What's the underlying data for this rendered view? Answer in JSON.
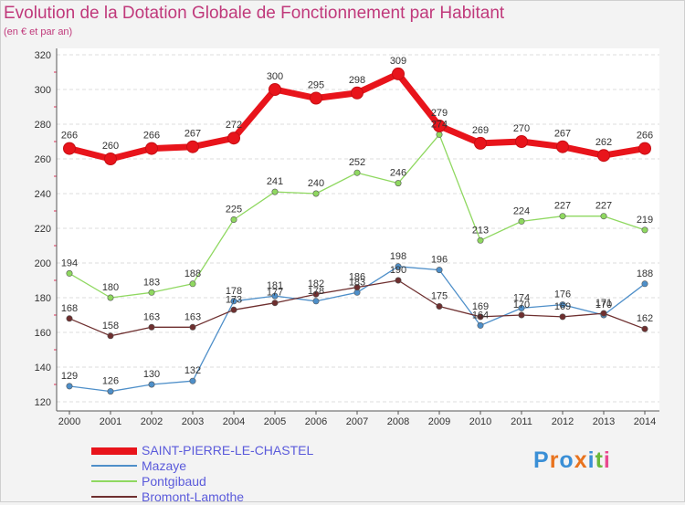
{
  "title": "Evolution de la Dotation Globale de Fonctionnement par Habitant",
  "subtitle": "(en € et par an)",
  "logo": {
    "text": "Proxiti",
    "colors": [
      "#3a8fd6",
      "#e8731e",
      "#3a8fd6",
      "#e8731e",
      "#3a8fd6",
      "#6ab83a",
      "#e84a8f"
    ]
  },
  "chart_data": {
    "type": "line",
    "title": "Evolution de la Dotation Globale de Fonctionnement par Habitant",
    "subtitle": "(en € et par an)",
    "xlabel": "",
    "ylabel": "",
    "x": [
      "2000",
      "2001",
      "2002",
      "2003",
      "2004",
      "2005",
      "2006",
      "2007",
      "2008",
      "2009",
      "2010",
      "2011",
      "2012",
      "2013",
      "2014"
    ],
    "ylim": [
      120,
      320
    ],
    "yticks": [
      120,
      140,
      160,
      180,
      200,
      220,
      240,
      260,
      280,
      300,
      320
    ],
    "grid": "horizontal dashed",
    "legend_position": "bottom-left",
    "series": [
      {
        "name": "SAINT-PIERRE-LE-CHASTEL",
        "color": "#e8141b",
        "values": [
          266,
          260,
          266,
          267,
          272,
          300,
          295,
          298,
          309,
          279,
          269,
          270,
          267,
          262,
          266
        ]
      },
      {
        "name": "Mazaye",
        "color": "#4e8fc9",
        "values": [
          129,
          126,
          130,
          132,
          178,
          181,
          178,
          183,
          198,
          196,
          164,
          174,
          176,
          170,
          188
        ]
      },
      {
        "name": "Pontgibaud",
        "color": "#8fd860",
        "values": [
          194,
          180,
          183,
          188,
          225,
          241,
          240,
          252,
          246,
          274,
          213,
          224,
          227,
          227,
          219
        ]
      },
      {
        "name": "Bromont-Lamothe",
        "color": "#6e2f2f",
        "values": [
          168,
          158,
          163,
          163,
          173,
          177,
          182,
          186,
          190,
          175,
          169,
          170,
          169,
          171,
          162
        ]
      }
    ],
    "data_labels": [
      [
        "266",
        "260",
        "266",
        "267",
        "272",
        "300",
        "295",
        "298",
        "309",
        "279",
        "269",
        "270",
        "267",
        "262",
        "266"
      ],
      [
        "129",
        "126",
        "130",
        "132",
        "178",
        "181",
        "178",
        "183",
        "198",
        "196",
        "164",
        "174",
        "176",
        "170",
        "188"
      ],
      [
        "194",
        "180",
        "183",
        "188",
        "225",
        "241",
        "240",
        "252",
        "246",
        "274",
        "213",
        "224",
        "227",
        "227",
        "219"
      ],
      [
        "168",
        "158",
        "163",
        "163",
        "173",
        "177",
        "182",
        "186",
        "190",
        "175",
        "169",
        "170",
        "169",
        "171",
        "162"
      ]
    ]
  }
}
